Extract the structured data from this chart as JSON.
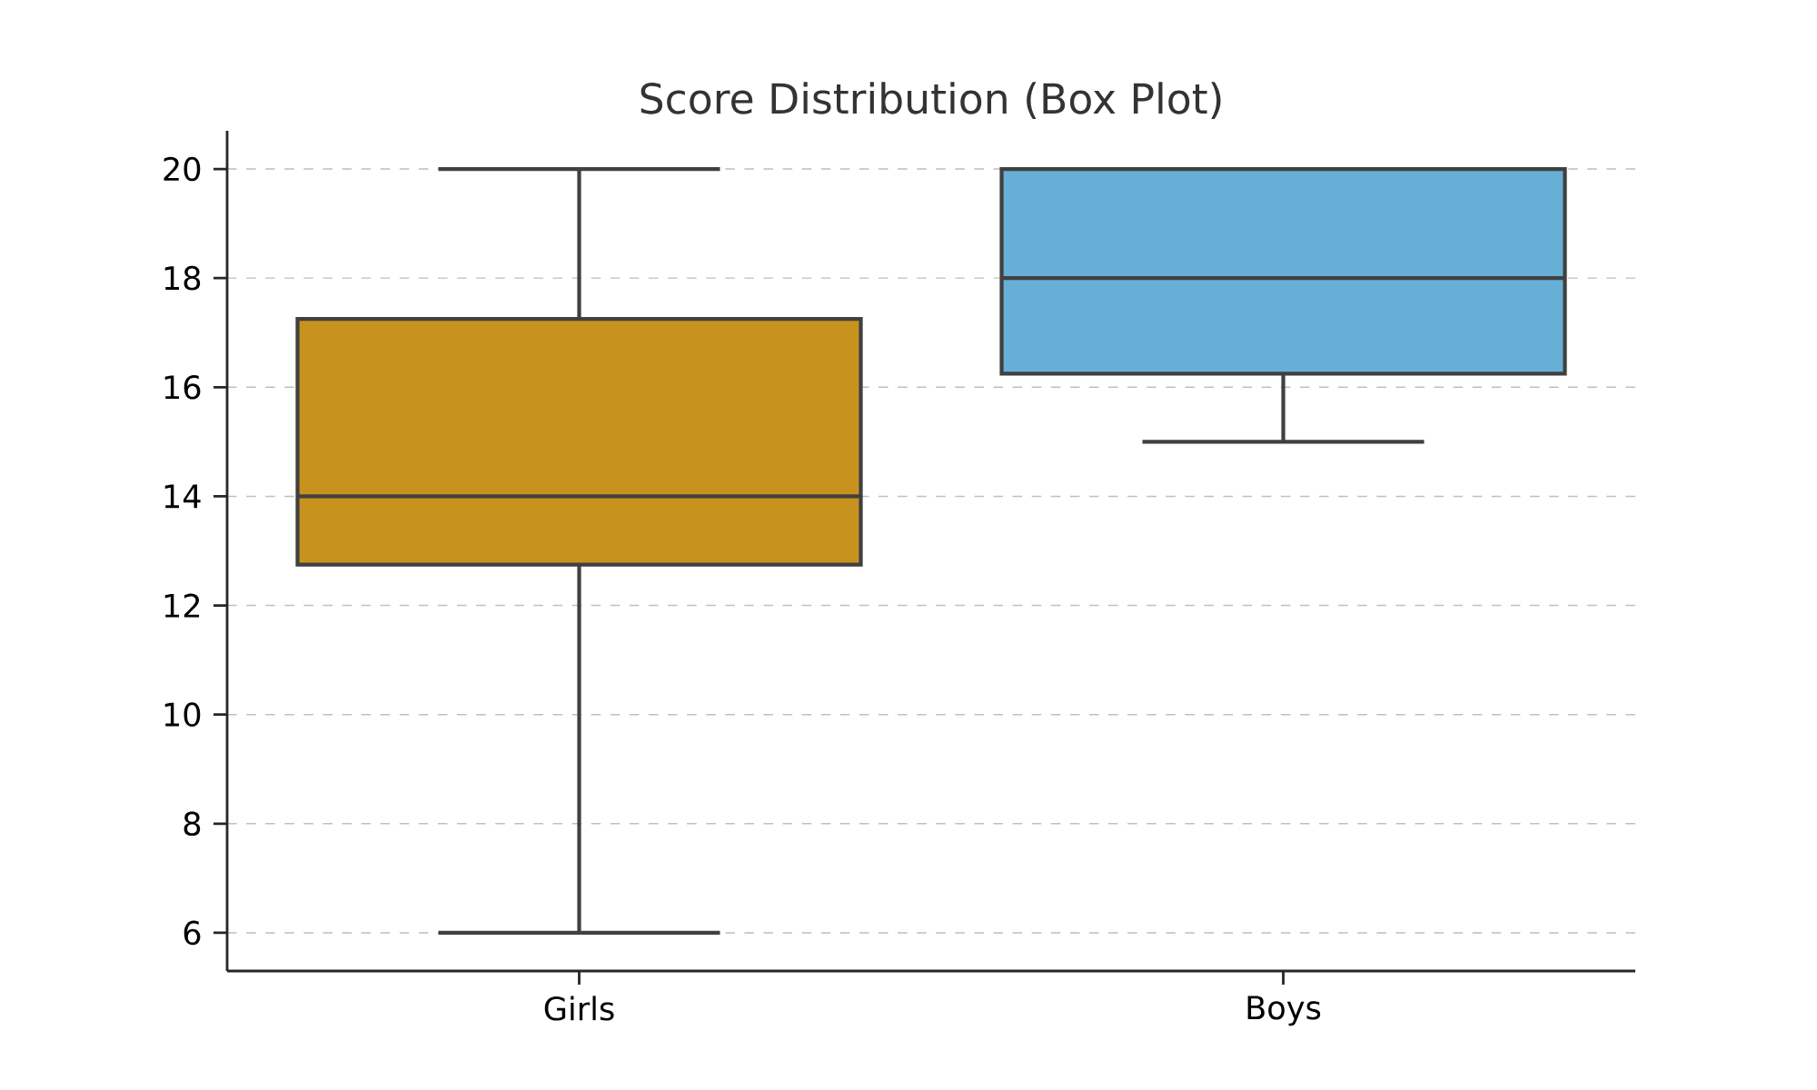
{
  "chart_data": {
    "type": "box",
    "title": "Score Distribution (Box Plot)",
    "categories": [
      "Girls",
      "Boys"
    ],
    "boxes": [
      {
        "low": 6,
        "q1": 12.75,
        "median": 14,
        "q3": 17.25,
        "high": 20
      },
      {
        "low": 15,
        "q1": 16.25,
        "median": 18,
        "q3": 20,
        "high": 20
      }
    ],
    "colors": [
      "#c8921e",
      "#67afd7"
    ],
    "ylim": [
      5.3,
      20.7
    ],
    "yticks": [
      6,
      8,
      10,
      12,
      14,
      16,
      18,
      20
    ],
    "grid": "y"
  }
}
